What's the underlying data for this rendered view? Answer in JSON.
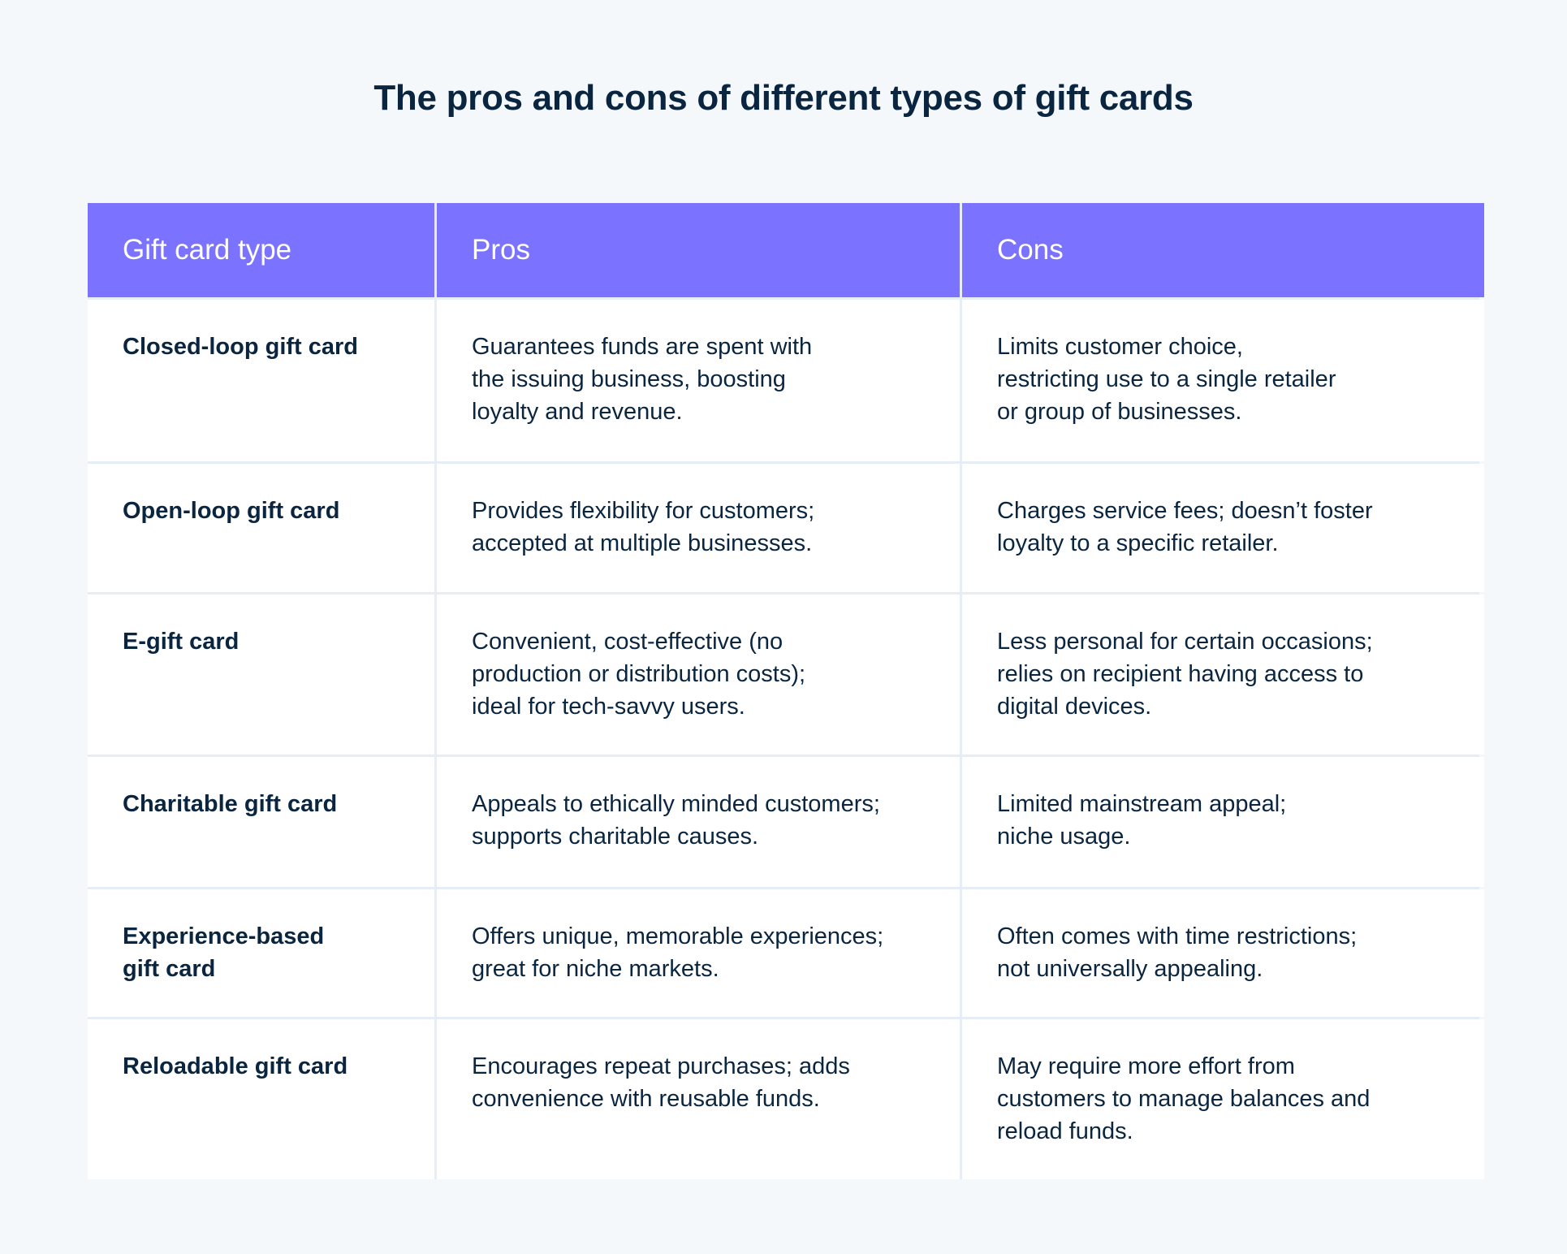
{
  "title": "The pros and cons of different types of gift cards",
  "colors": {
    "header": "#7B73FF",
    "background": "#F5F8FB",
    "text": "#0A2540"
  },
  "table": {
    "headers": [
      "Gift card type",
      "Pros",
      "Cons"
    ],
    "rows": [
      [
        "Closed-loop gift card",
        "Guarantees funds are spent with\nthe issuing business, boosting\nloyalty and revenue.",
        "Limits customer choice,\nrestricting use to a single retailer\nor group of businesses."
      ],
      [
        "Open-loop gift card",
        "Provides flexibility for customers;\naccepted at multiple businesses.",
        "Charges service fees; doesn’t foster\nloyalty to a specific retailer."
      ],
      [
        "E-gift card",
        "Convenient, cost-effective (no\nproduction or distribution costs);\nideal for tech-savvy users.",
        "Less personal for certain occasions;\nrelies on recipient having access to\ndigital devices."
      ],
      [
        "Charitable gift card",
        "Appeals to ethically minded customers;\nsupports charitable causes.",
        "Limited mainstream appeal;\nniche usage."
      ],
      [
        "Experience-based\ngift card",
        "Offers unique, memorable experiences;\ngreat for niche markets.",
        "Often comes with time restrictions;\nnot universally appealing."
      ],
      [
        "Reloadable gift card",
        "Encourages repeat purchases; adds\nconvenience with reusable funds.",
        "May require more effort from\ncustomers to manage balances and\nreload funds."
      ]
    ]
  }
}
